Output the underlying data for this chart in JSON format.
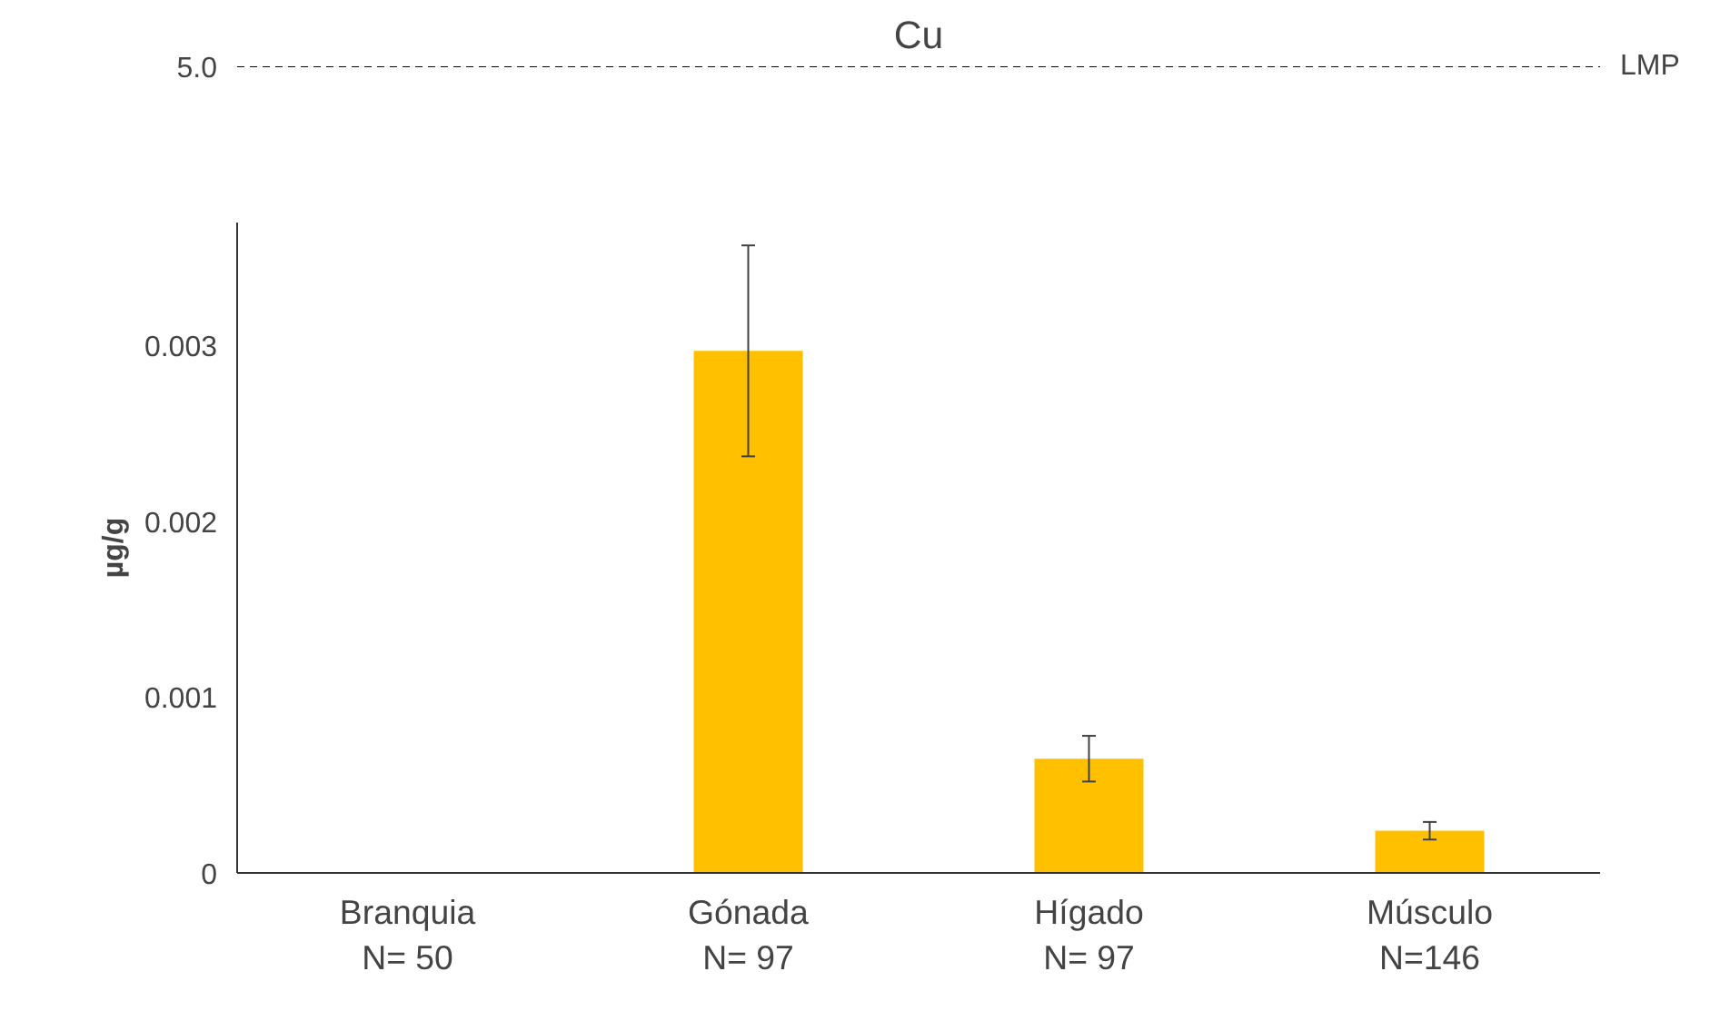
{
  "chart_data": [
    {
      "type": "other",
      "title": "Cu",
      "annotations": [
        "5.0",
        "LMP"
      ]
    },
    {
      "type": "bar",
      "ylabel": "µg/g",
      "categories": [
        "Branquia\nN= 50",
        "Gónada\nN= 97",
        "Hígado\nN= 97",
        "Músculo\nN=146"
      ],
      "values": [
        null,
        0.00297,
        0.00065,
        0.00024
      ],
      "errors": [
        null,
        0.0006,
        0.00013,
        5e-05
      ],
      "color": "#ffc000",
      "ylim": [
        0,
        0.0037
      ],
      "yticks": [
        {
          "value": 0,
          "label": "0"
        },
        {
          "value": 0.001,
          "label": "0.001"
        },
        {
          "value": 0.002,
          "label": "0.002"
        },
        {
          "value": 0.003,
          "label": "0.003"
        }
      ]
    }
  ]
}
